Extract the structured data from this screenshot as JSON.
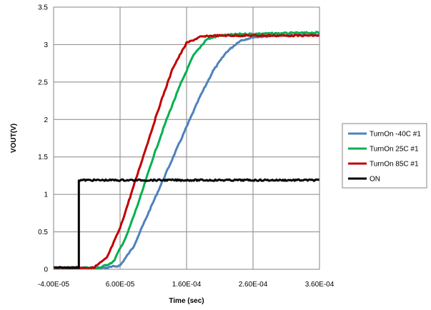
{
  "chart_data": {
    "type": "line",
    "title": "",
    "xlabel": "Time (sec)",
    "ylabel": "VOUT(V)",
    "xlim": [
      -4e-05,
      0.00036
    ],
    "ylim": [
      0,
      3.5
    ],
    "x_ticks": [
      -4e-05,
      6e-05,
      0.00016,
      0.00026,
      0.00036
    ],
    "x_tick_labels": [
      "-4.00E-05",
      "6.00E-05",
      "1.60E-04",
      "2.60E-04",
      "3.60E-04"
    ],
    "y_ticks": [
      0,
      0.5,
      1,
      1.5,
      2,
      2.5,
      3,
      3.5
    ],
    "y_tick_labels": [
      "0",
      "0.5",
      "1",
      "1.5",
      "2",
      "2.5",
      "3",
      "3.5"
    ],
    "grid": true,
    "legend_position": "right",
    "series": [
      {
        "name": "TurnOn -40C #1",
        "color": "#4F81BD",
        "x": [
          -4e-05,
          4e-05,
          6e-05,
          8e-05,
          0.0001,
          0.00012,
          0.00014,
          0.00016,
          0.00018,
          0.0002,
          0.00022,
          0.00024,
          0.00026,
          0.0003,
          0.00036
        ],
        "y": [
          0.02,
          0.02,
          0.05,
          0.3,
          0.7,
          1.1,
          1.5,
          1.9,
          2.3,
          2.65,
          2.9,
          3.05,
          3.1,
          3.12,
          3.13
        ]
      },
      {
        "name": "TurnOn 25C #1",
        "color": "#00B050",
        "x": [
          -4e-05,
          3e-05,
          5e-05,
          7e-05,
          9e-05,
          0.00011,
          0.00013,
          0.00015,
          0.00017,
          0.00019,
          0.00021,
          0.00024,
          0.0003,
          0.00036
        ],
        "y": [
          0.02,
          0.02,
          0.1,
          0.45,
          0.95,
          1.5,
          2.0,
          2.45,
          2.85,
          3.07,
          3.12,
          3.14,
          3.15,
          3.16
        ]
      },
      {
        "name": "TurnOn 85C #1",
        "color": "#C00000",
        "x": [
          -4e-05,
          2e-05,
          4e-05,
          6e-05,
          8e-05,
          0.0001,
          0.00012,
          0.00014,
          0.00016,
          0.00018,
          0.0002,
          0.00024,
          0.0003,
          0.00036
        ],
        "y": [
          0.02,
          0.02,
          0.15,
          0.55,
          1.1,
          1.65,
          2.2,
          2.7,
          3.02,
          3.1,
          3.12,
          3.12,
          3.12,
          3.12
        ]
      },
      {
        "name": "ON",
        "color": "#000000",
        "x": [
          -4e-05,
          -2e-06,
          -2e-06,
          0.00036
        ],
        "y": [
          0.02,
          0.02,
          1.19,
          1.19
        ]
      }
    ]
  }
}
